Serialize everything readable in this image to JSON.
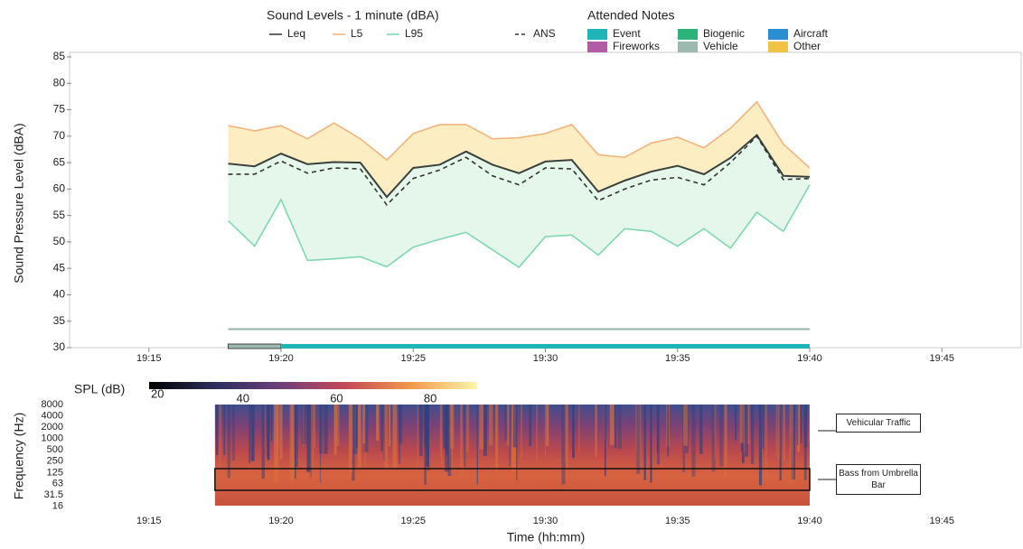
{
  "chart_data": [
    {
      "type": "line",
      "title": "Sound Levels - 1 minute (dBA)",
      "y_label": "Sound Pressure Level (dBA)",
      "x": [
        "19:18",
        "19:19",
        "19:20",
        "19:21",
        "19:22",
        "19:23",
        "19:24",
        "19:25",
        "19:26",
        "19:27",
        "19:28",
        "19:29",
        "19:30",
        "19:31",
        "19:32",
        "19:33",
        "19:34",
        "19:35",
        "19:36",
        "19:37",
        "19:38",
        "19:39",
        "19:40"
      ],
      "series": [
        {
          "name": "Leq",
          "color": "#3b413c",
          "style": "solid",
          "values": [
            64.8,
            64.3,
            66.7,
            64.7,
            65.1,
            65.0,
            58.5,
            64.0,
            64.6,
            67.1,
            64.6,
            63.0,
            65.2,
            65.5,
            59.5,
            61.6,
            63.3,
            64.4,
            62.8,
            65.9,
            70.2,
            62.5,
            62.3
          ]
        },
        {
          "name": "L5",
          "color": "#f2b47c",
          "style": "solid",
          "values": [
            72.0,
            71.0,
            72.0,
            69.5,
            72.5,
            69.5,
            65.5,
            70.5,
            72.2,
            72.2,
            69.5,
            69.7,
            70.5,
            72.2,
            66.5,
            66.0,
            68.7,
            69.8,
            67.8,
            71.5,
            76.5,
            68.5,
            64.0
          ]
        },
        {
          "name": "L95",
          "color": "#7fd8b2",
          "style": "solid",
          "values": [
            54.0,
            49.2,
            58.0,
            46.5,
            46.8,
            47.2,
            45.3,
            49.0,
            50.5,
            51.8,
            48.5,
            45.2,
            51.0,
            51.3,
            47.5,
            52.5,
            52.0,
            49.2,
            52.5,
            48.8,
            55.6,
            52.0,
            60.8
          ]
        },
        {
          "name": "ANS",
          "color": "#333333",
          "style": "dashed",
          "values": [
            62.8,
            62.8,
            65.3,
            63.0,
            64.0,
            63.8,
            57.0,
            62.0,
            63.6,
            66.0,
            62.5,
            60.8,
            64.0,
            63.8,
            57.8,
            60.0,
            61.7,
            62.2,
            60.8,
            65.0,
            70.0,
            61.8,
            62.0
          ]
        }
      ],
      "notes_legend": {
        "title": "Attended Notes",
        "items": [
          {
            "name": "Event",
            "color": "#1fb5b8"
          },
          {
            "name": "Fireworks",
            "color": "#b25ca8"
          },
          {
            "name": "Biogenic",
            "color": "#2bb37a"
          },
          {
            "name": "Vehicle",
            "color": "#9db8ad"
          },
          {
            "name": "Aircraft",
            "color": "#2a8fd0"
          },
          {
            "name": "Other",
            "color": "#f2c244"
          }
        ]
      },
      "notes": [
        {
          "name": "Vehicle",
          "start": "19:18",
          "end": "19:20"
        },
        {
          "name": "Event",
          "start": "19:20",
          "end": "19:40"
        }
      ],
      "hline": 33.5,
      "xlim": [
        "19:12",
        "19:48"
      ],
      "xticks": [
        "19:15",
        "19:20",
        "19:25",
        "19:30",
        "19:35",
        "19:40",
        "19:45"
      ],
      "ylim": [
        30,
        85
      ],
      "yticks": [
        30,
        35,
        40,
        45,
        50,
        55,
        60,
        65,
        70,
        75,
        80,
        85
      ]
    },
    {
      "type": "spectrogram",
      "colorbar_label": "SPL (dB)",
      "clim": [
        20,
        90
      ],
      "cticks": [
        20,
        40,
        60,
        80
      ],
      "y_label": "Frequency (Hz)",
      "x_label": "Time (hh:mm)",
      "log_y": true,
      "ylim": [
        14,
        9000
      ],
      "yticks": [
        8000,
        4000,
        2000,
        1000,
        500,
        250,
        125,
        63,
        31.5,
        16
      ],
      "xlim": [
        "19:12",
        "19:48"
      ],
      "xticks": [
        "19:15",
        "19:20",
        "19:25",
        "19:30",
        "19:35",
        "19:40",
        "19:45"
      ],
      "span": [
        "19:17.5",
        "19:40"
      ],
      "annotations": [
        "Vehicular Traffic",
        "Bass from Umbrella Bar"
      ]
    }
  ]
}
